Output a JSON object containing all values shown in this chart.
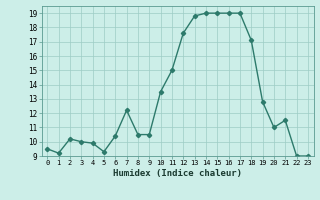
{
  "x": [
    0,
    1,
    2,
    3,
    4,
    5,
    6,
    7,
    8,
    9,
    10,
    11,
    12,
    13,
    14,
    15,
    16,
    17,
    18,
    19,
    20,
    21,
    22,
    23
  ],
  "y": [
    9.5,
    9.2,
    10.2,
    10.0,
    9.9,
    9.3,
    10.4,
    12.2,
    10.5,
    10.5,
    13.5,
    15.0,
    17.6,
    18.8,
    19.0,
    19.0,
    19.0,
    19.0,
    17.1,
    12.8,
    11.0,
    11.5,
    9.0,
    9.0
  ],
  "xlabel": "Humidex (Indice chaleur)",
  "ylim": [
    9,
    19.5
  ],
  "yticks": [
    9,
    10,
    11,
    12,
    13,
    14,
    15,
    16,
    17,
    18,
    19
  ],
  "xticks": [
    0,
    1,
    2,
    3,
    4,
    5,
    6,
    7,
    8,
    9,
    10,
    11,
    12,
    13,
    14,
    15,
    16,
    17,
    18,
    19,
    20,
    21,
    22,
    23
  ],
  "xtick_labels": [
    "0",
    "1",
    "2",
    "3",
    "4",
    "5",
    "6",
    "7",
    "8",
    "9",
    "10",
    "11",
    "12",
    "13",
    "14",
    "15",
    "16",
    "17",
    "18",
    "19",
    "20",
    "21",
    "22",
    "23"
  ],
  "line_color": "#2d7a6b",
  "marker": "D",
  "marker_size": 2.2,
  "bg_color": "#cceee8",
  "grid_color": "#9dccc5",
  "title": ""
}
